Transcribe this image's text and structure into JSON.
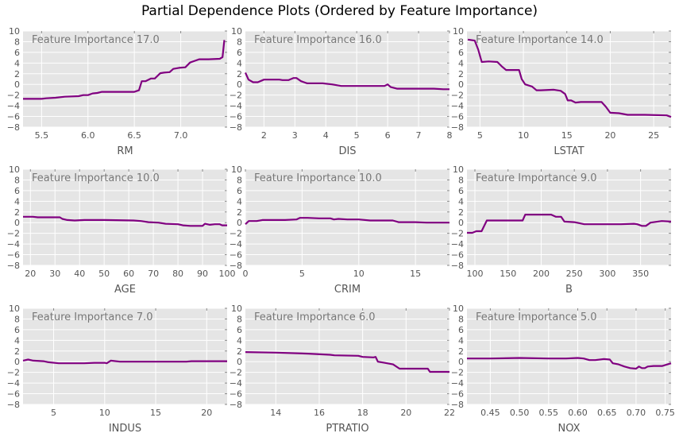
{
  "figure": {
    "title": "Partial Dependence Plots (Ordered by Feature Importance)"
  },
  "style": {
    "panel_bg": "#e5e5e5",
    "grid": "#ffffff",
    "line": "#800080"
  },
  "chart_data": [
    {
      "type": "line",
      "xlabel": "RM",
      "annotation": "Feature Importance 17.0",
      "xlim": [
        5.3,
        7.5
      ],
      "ylim": [
        -8,
        10
      ],
      "xticks": [
        5.5,
        6.0,
        6.5,
        7.0
      ],
      "xtick_labels": [
        "5.5",
        "6.0",
        "6.5",
        "7.0"
      ],
      "yticks": [
        -8,
        -6,
        -4,
        -2,
        0,
        2,
        4,
        6,
        8,
        10
      ],
      "ytick_labels": [
        "−8",
        "−6",
        "−4",
        "−2",
        "0",
        "2",
        "4",
        "6",
        "8",
        "10"
      ],
      "x": [
        5.3,
        5.5,
        5.55,
        5.65,
        5.75,
        5.9,
        5.95,
        6.0,
        6.05,
        6.1,
        6.15,
        6.2,
        6.5,
        6.55,
        6.58,
        6.62,
        6.68,
        6.72,
        6.78,
        6.82,
        6.88,
        6.92,
        6.98,
        7.05,
        7.1,
        7.15,
        7.2,
        7.3,
        7.42,
        7.45,
        7.47
      ],
      "y": [
        -2.7,
        -2.7,
        -2.6,
        -2.5,
        -2.3,
        -2.2,
        -2.0,
        -2.0,
        -1.7,
        -1.6,
        -1.4,
        -1.4,
        -1.4,
        -1.1,
        0.6,
        0.6,
        1.1,
        1.1,
        2.1,
        2.2,
        2.3,
        2.9,
        3.1,
        3.2,
        4.1,
        4.4,
        4.7,
        4.7,
        4.8,
        5.1,
        8.3
      ]
    },
    {
      "type": "line",
      "xlabel": "DIS",
      "annotation": "Feature Importance 16.0",
      "xlim": [
        1.4,
        8.0
      ],
      "ylim": [
        -8,
        10
      ],
      "xticks": [
        2,
        3,
        4,
        5,
        6,
        7,
        8
      ],
      "xtick_labels": [
        "2",
        "3",
        "4",
        "5",
        "6",
        "7",
        "8"
      ],
      "yticks": [
        -8,
        -6,
        -4,
        -2,
        0,
        2,
        4,
        6,
        8,
        10
      ],
      "ytick_labels": [
        "−8",
        "−6",
        "−4",
        "−2",
        "0",
        "2",
        "4",
        "6",
        "8",
        "10"
      ],
      "x": [
        1.4,
        1.5,
        1.65,
        1.8,
        2.0,
        2.2,
        2.5,
        2.6,
        2.8,
        2.95,
        3.05,
        3.2,
        3.4,
        3.9,
        4.2,
        4.5,
        5.0,
        5.5,
        5.9,
        6.0,
        6.1,
        6.3,
        7.0,
        7.5,
        7.8,
        8.0
      ],
      "y": [
        2.2,
        0.9,
        0.4,
        0.4,
        0.9,
        0.9,
        0.9,
        0.8,
        0.8,
        1.2,
        1.2,
        0.6,
        0.2,
        0.2,
        0.0,
        -0.3,
        -0.3,
        -0.3,
        -0.3,
        0.0,
        -0.5,
        -0.8,
        -0.8,
        -0.8,
        -0.9,
        -0.9
      ]
    },
    {
      "type": "line",
      "xlabel": "LSTAT",
      "annotation": "Feature Importance 14.0",
      "xlim": [
        3.5,
        27.0
      ],
      "ylim": [
        -8,
        10
      ],
      "xticks": [
        5,
        10,
        15,
        20,
        25
      ],
      "xtick_labels": [
        "5",
        "10",
        "15",
        "20",
        "25"
      ],
      "yticks": [
        -8,
        -6,
        -4,
        -2,
        0,
        2,
        4,
        6,
        8,
        10
      ],
      "ytick_labels": [
        "−8",
        "−6",
        "−4",
        "−2",
        "0",
        "2",
        "4",
        "6",
        "8",
        "10"
      ],
      "x": [
        3.6,
        4.4,
        4.8,
        5.2,
        6.0,
        7.0,
        7.5,
        8.0,
        9.5,
        9.8,
        10.2,
        11.0,
        11.5,
        12.0,
        13.5,
        14.3,
        14.8,
        15.1,
        15.5,
        16.0,
        16.6,
        17.5,
        19.0,
        19.5,
        20.0,
        21.0,
        22.0,
        24.0,
        26.5,
        27.0
      ],
      "y": [
        8.4,
        8.2,
        6.5,
        4.2,
        4.3,
        4.2,
        3.4,
        2.7,
        2.7,
        1.0,
        0.0,
        -0.4,
        -1.1,
        -1.1,
        -1.0,
        -1.2,
        -1.8,
        -3.0,
        -3.0,
        -3.4,
        -3.3,
        -3.3,
        -3.3,
        -4.2,
        -5.3,
        -5.4,
        -5.7,
        -5.7,
        -5.8,
        -6.1
      ]
    },
    {
      "type": "line",
      "xlabel": "AGE",
      "annotation": "Feature Importance 10.0",
      "xlim": [
        17,
        100
      ],
      "ylim": [
        -8,
        10
      ],
      "xticks": [
        20,
        30,
        40,
        50,
        60,
        70,
        80,
        90,
        100
      ],
      "xtick_labels": [
        "20",
        "30",
        "40",
        "50",
        "60",
        "70",
        "80",
        "90",
        "100"
      ],
      "yticks": [
        -8,
        -6,
        -4,
        -2,
        0,
        2,
        4,
        6,
        8,
        10
      ],
      "ytick_labels": [
        "−8",
        "−6",
        "−4",
        "−2",
        "0",
        "2",
        "4",
        "6",
        "8",
        "10"
      ],
      "x": [
        17,
        21,
        23,
        30,
        32,
        33,
        35,
        38,
        42,
        50,
        62,
        65,
        68,
        72,
        75,
        80,
        82,
        85,
        90,
        91,
        93,
        95,
        97,
        98,
        100
      ],
      "y": [
        1.1,
        1.1,
        1.0,
        1.0,
        1.0,
        0.7,
        0.5,
        0.4,
        0.5,
        0.5,
        0.4,
        0.3,
        0.1,
        0.0,
        -0.2,
        -0.3,
        -0.5,
        -0.6,
        -0.6,
        -0.2,
        -0.4,
        -0.3,
        -0.3,
        -0.5,
        -0.5
      ]
    },
    {
      "type": "line",
      "xlabel": "CRIM",
      "annotation": "Feature Importance 10.0",
      "xlim": [
        0,
        18
      ],
      "ylim": [
        -8,
        10
      ],
      "xticks": [
        0,
        5,
        10,
        15
      ],
      "xtick_labels": [
        "0",
        "5",
        "10",
        "15"
      ],
      "yticks": [
        -8,
        -6,
        -4,
        -2,
        0,
        2,
        4,
        6,
        8,
        10
      ],
      "ytick_labels": [
        "−8",
        "−6",
        "−4",
        "−2",
        "0",
        "2",
        "4",
        "6",
        "8",
        "10"
      ],
      "x": [
        0.0,
        0.3,
        1.0,
        1.5,
        2.5,
        3.5,
        4.5,
        4.8,
        5.5,
        6.5,
        7.5,
        7.8,
        8.2,
        9.0,
        10.0,
        11.0,
        13.0,
        13.5,
        15.0,
        16.0,
        18.0
      ],
      "y": [
        -0.3,
        0.3,
        0.3,
        0.5,
        0.5,
        0.5,
        0.6,
        0.9,
        0.9,
        0.8,
        0.8,
        0.6,
        0.7,
        0.6,
        0.6,
        0.4,
        0.4,
        0.1,
        0.1,
        0.0,
        0.0
      ]
    },
    {
      "type": "line",
      "xlabel": "B",
      "annotation": "Feature Importance 9.0",
      "xlim": [
        88,
        396
      ],
      "ylim": [
        -8,
        10
      ],
      "xticks": [
        100,
        150,
        200,
        250,
        300,
        350
      ],
      "xtick_labels": [
        "100",
        "150",
        "200",
        "250",
        "300",
        "350"
      ],
      "yticks": [
        -8,
        -6,
        -4,
        -2,
        0,
        2,
        4,
        6,
        8,
        10
      ],
      "ytick_labels": [
        "−8",
        "−6",
        "−4",
        "−2",
        "0",
        "2",
        "4",
        "6",
        "8",
        "10"
      ],
      "x": [
        88,
        96,
        102,
        110,
        118,
        140,
        160,
        172,
        176,
        195,
        215,
        222,
        230,
        235,
        250,
        265,
        275,
        290,
        320,
        340,
        345,
        352,
        358,
        365,
        382,
        396
      ],
      "y": [
        -1.9,
        -1.9,
        -1.6,
        -1.6,
        0.4,
        0.4,
        0.4,
        0.4,
        1.5,
        1.5,
        1.5,
        1.1,
        1.1,
        0.2,
        0.1,
        -0.3,
        -0.3,
        -0.3,
        -0.3,
        -0.2,
        -0.3,
        -0.6,
        -0.6,
        0.0,
        0.3,
        0.2
      ]
    },
    {
      "type": "line",
      "xlabel": "INDUS",
      "annotation": "Feature Importance 7.0",
      "xlim": [
        2,
        22
      ],
      "ylim": [
        -8,
        10
      ],
      "xticks": [
        5,
        10,
        15,
        20
      ],
      "xtick_labels": [
        "5",
        "10",
        "15",
        "20"
      ],
      "yticks": [
        -8,
        -6,
        -4,
        -2,
        0,
        2,
        4,
        6,
        8,
        10
      ],
      "ytick_labels": [
        "−8",
        "−6",
        "−4",
        "−2",
        "0",
        "2",
        "4",
        "6",
        "8",
        "10"
      ],
      "x": [
        2.0,
        2.5,
        3.0,
        4.0,
        4.5,
        5.5,
        8.0,
        9.0,
        10.0,
        10.2,
        10.6,
        11.5,
        14.0,
        18.0,
        18.5,
        22.0
      ],
      "y": [
        0.2,
        0.4,
        0.2,
        0.1,
        -0.1,
        -0.3,
        -0.3,
        -0.2,
        -0.2,
        -0.3,
        0.2,
        0.0,
        0.0,
        0.0,
        0.1,
        0.1
      ]
    },
    {
      "type": "line",
      "xlabel": "PTRATIO",
      "annotation": "Feature Importance 6.0",
      "xlim": [
        12.6,
        22.0
      ],
      "ylim": [
        -8,
        10
      ],
      "xticks": [
        14,
        16,
        18,
        20,
        22
      ],
      "xtick_labels": [
        "14",
        "16",
        "18",
        "20",
        "22"
      ],
      "yticks": [
        -8,
        -6,
        -4,
        -2,
        0,
        2,
        4,
        6,
        8,
        10
      ],
      "ytick_labels": [
        "−8",
        "−6",
        "−4",
        "−2",
        "0",
        "2",
        "4",
        "6",
        "8",
        "10"
      ],
      "x": [
        12.6,
        14.0,
        15.5,
        16.5,
        16.7,
        17.8,
        18.0,
        18.5,
        18.6,
        18.7,
        19.0,
        19.4,
        19.7,
        21.0,
        21.1,
        22.0
      ],
      "y": [
        1.8,
        1.7,
        1.5,
        1.3,
        1.2,
        1.1,
        0.9,
        0.8,
        0.9,
        0.0,
        -0.2,
        -0.5,
        -1.3,
        -1.3,
        -1.9,
        -1.9
      ]
    },
    {
      "type": "line",
      "xlabel": "NOX",
      "annotation": "Feature Importance 5.0",
      "xlim": [
        0.41,
        0.76
      ],
      "ylim": [
        -8,
        10
      ],
      "xticks": [
        0.45,
        0.5,
        0.55,
        0.6,
        0.65,
        0.7,
        0.75
      ],
      "xtick_labels": [
        "0.45",
        "0.50",
        "0.55",
        "0.60",
        "0.65",
        "0.70",
        "0.75"
      ],
      "yticks": [
        -8,
        -6,
        -4,
        -2,
        0,
        2,
        4,
        6,
        8,
        10
      ],
      "ytick_labels": [
        "−8",
        "−6",
        "−4",
        "−2",
        "0",
        "2",
        "4",
        "6",
        "8",
        "10"
      ],
      "x": [
        0.41,
        0.45,
        0.5,
        0.55,
        0.58,
        0.6,
        0.61,
        0.62,
        0.63,
        0.645,
        0.655,
        0.66,
        0.67,
        0.68,
        0.69,
        0.7,
        0.705,
        0.71,
        0.715,
        0.72,
        0.73,
        0.745,
        0.76
      ],
      "y": [
        0.6,
        0.6,
        0.7,
        0.6,
        0.6,
        0.7,
        0.6,
        0.3,
        0.3,
        0.5,
        0.4,
        -0.3,
        -0.5,
        -0.9,
        -1.2,
        -1.3,
        -0.9,
        -1.2,
        -1.2,
        -0.9,
        -0.8,
        -0.8,
        -0.3
      ]
    }
  ]
}
